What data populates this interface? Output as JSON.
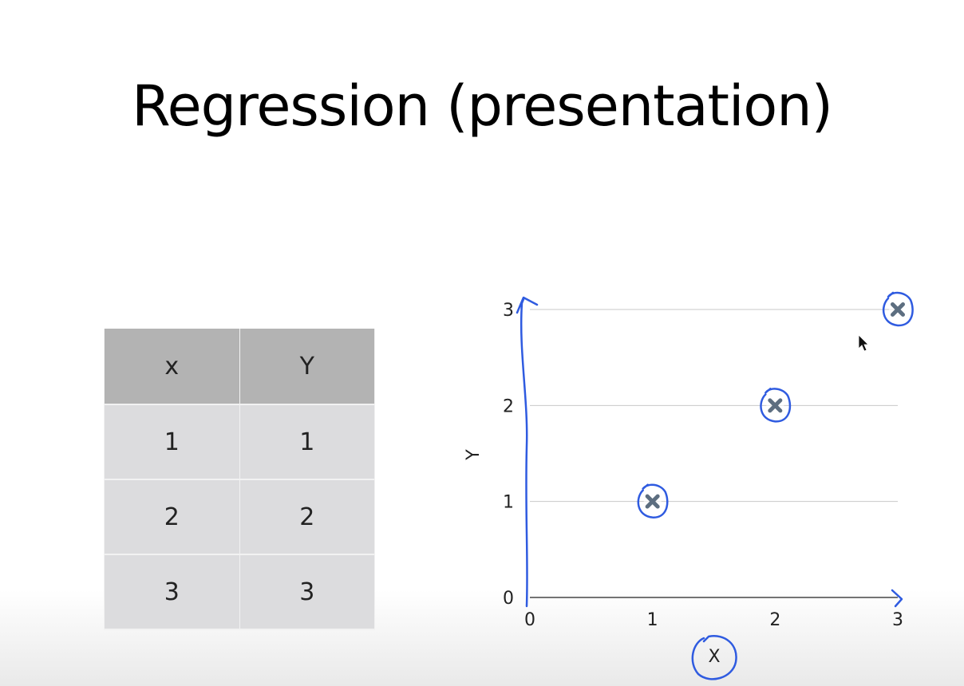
{
  "title": "Regression (presentation)",
  "table": {
    "headers": [
      "x",
      "Y"
    ],
    "rows": [
      [
        "1",
        "1"
      ],
      [
        "2",
        "2"
      ],
      [
        "3",
        "3"
      ]
    ]
  },
  "chart_data": {
    "type": "scatter",
    "x": [
      1,
      2,
      3
    ],
    "y": [
      1,
      2,
      3
    ],
    "xlabel": "X",
    "ylabel": "Y",
    "xlim": [
      0,
      3
    ],
    "ylim": [
      0,
      3
    ],
    "x_ticks": [
      "0",
      "1",
      "2",
      "3"
    ],
    "y_ticks": [
      "0",
      "1",
      "2",
      "3"
    ],
    "grid": true,
    "marker": "x",
    "colors": {
      "marker": "#5d6e80",
      "annotation_ink": "#2f5be0",
      "gridline": "#c8c8c8"
    }
  }
}
